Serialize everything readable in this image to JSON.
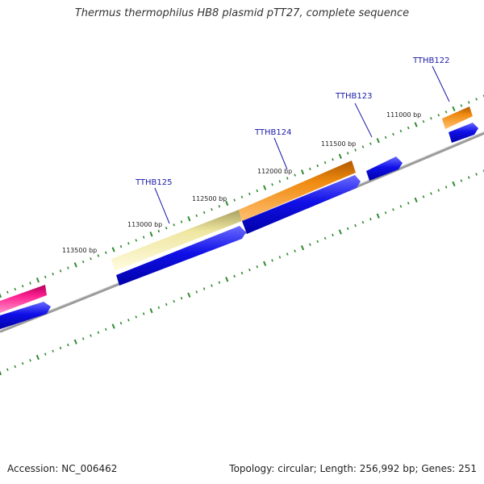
{
  "title": "Thermus thermophilus HB8 plasmid pTT27, complete sequence",
  "footer": {
    "accession": "Accession: NC_006462",
    "summary": "Topology: circular; Length: 256,992 bp; Genes: 251"
  },
  "colors": {
    "backbone": "#8a8a8a",
    "tick": "#2e8b2e",
    "cds": "#1010e0",
    "gene_orange": "#f08a10",
    "gene_khaki": "#f0e6a0",
    "gene_pink": "#e8187f",
    "gene_label": "#1a1aa6"
  },
  "scale_labels": [
    {
      "text": "113500 bp"
    },
    {
      "text": "113000 bp"
    },
    {
      "text": "112500 bp"
    },
    {
      "text": "112000 bp"
    },
    {
      "text": "111500 bp"
    },
    {
      "text": "111000 bp"
    }
  ],
  "gene_labels": [
    {
      "text": "TTHB125"
    },
    {
      "text": "TTHB124"
    },
    {
      "text": "TTHB123"
    },
    {
      "text": "TTHB122"
    }
  ]
}
